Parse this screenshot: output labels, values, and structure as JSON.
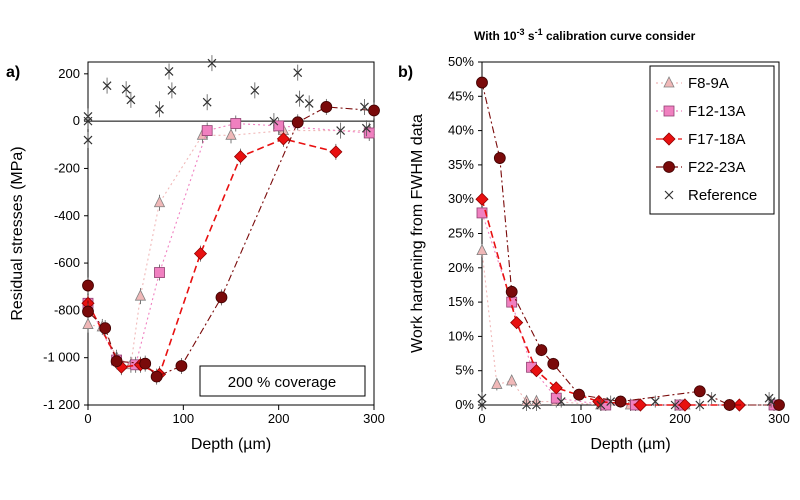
{
  "header": {
    "pre": "With 10",
    "exp1": "-3",
    "mid": " s",
    "exp2": "-1",
    "post": " calibration curve consider"
  },
  "legend_entries": [
    "F8-9A",
    "F12-13A",
    "F17-18A",
    "F22-23A",
    "Reference"
  ],
  "colors": {
    "F8-9A": "#f0b8b8",
    "F12-13A": "#f080c0",
    "F17-18A": "#e81010",
    "F22-23A": "#7a0a0a",
    "Reference": "#333333"
  },
  "chart_data": [
    {
      "type": "scatter",
      "panel_label": "a)",
      "xlabel": "Depth (µm)",
      "ylabel": "Residual stresses (MPa)",
      "xlim": [
        0,
        300
      ],
      "ylim": [
        -1200,
        250
      ],
      "x_ticks": [
        0,
        100,
        200,
        300
      ],
      "y_ticks": [
        200,
        0,
        -200,
        -400,
        -600,
        -800,
        -1000,
        -1200
      ],
      "y_tick_labels": [
        "200",
        "0",
        "-200",
        "-400",
        "-600",
        "-800",
        "-1 000",
        "-1 200"
      ],
      "annotation": "200 % coverage",
      "grid": false,
      "series": [
        {
          "name": "F8-9A",
          "marker": "triangle",
          "line": "dotted",
          "x": [
            0,
            15,
            30,
            45,
            55,
            75,
            120,
            150,
            205,
            295
          ],
          "y": [
            -860,
            -870,
            -1000,
            -1030,
            -740,
            -345,
            -60,
            -60,
            -40,
            -40
          ]
        },
        {
          "name": "F12-13A",
          "marker": "square",
          "line": "dotted",
          "x": [
            0,
            30,
            50,
            75,
            125,
            155,
            200,
            295
          ],
          "y": [
            -770,
            -1010,
            -1030,
            -640,
            -40,
            -10,
            -20,
            -50
          ]
        },
        {
          "name": "F17-18A",
          "marker": "diamond",
          "line": "dashed",
          "x": [
            0,
            35,
            55,
            75,
            118,
            160,
            205,
            260
          ],
          "y": [
            -770,
            -1040,
            -1030,
            -1070,
            -560,
            -150,
            -75,
            -130
          ]
        },
        {
          "name": "F22-23A",
          "marker": "circle",
          "line": "dashdot",
          "x": [
            0,
            0,
            18,
            30,
            60,
            72,
            98,
            140,
            220,
            250,
            300
          ],
          "y": [
            -695,
            -805,
            -875,
            -1015,
            -1025,
            -1080,
            -1035,
            -745,
            -5,
            60,
            45
          ]
        },
        {
          "name": "Reference",
          "marker": "x",
          "line": "none",
          "x": [
            0,
            0,
            0,
            20,
            40,
            45,
            75,
            85,
            88,
            125,
            130,
            175,
            195,
            220,
            222,
            232,
            265,
            290,
            292
          ],
          "y": [
            20,
            0,
            -80,
            150,
            135,
            90,
            50,
            210,
            130,
            80,
            245,
            130,
            0,
            205,
            95,
            75,
            -40,
            60,
            -30
          ]
        }
      ]
    },
    {
      "type": "scatter",
      "panel_label": "b)",
      "xlabel": "Depth (µm)",
      "ylabel": "Work hardening from FWHM data",
      "xlim": [
        0,
        300
      ],
      "ylim": [
        0,
        50
      ],
      "x_ticks": [
        0,
        100,
        200,
        300
      ],
      "y_ticks": [
        0,
        5,
        10,
        15,
        20,
        25,
        30,
        35,
        40,
        45,
        50
      ],
      "y_tick_labels": [
        "0%",
        "5%",
        "10%",
        "15%",
        "20%",
        "25%",
        "30%",
        "35%",
        "40%",
        "45%",
        "50%"
      ],
      "grid": false,
      "legend_position": "top-right",
      "series": [
        {
          "name": "F8-9A",
          "marker": "triangle",
          "line": "dotted",
          "x": [
            0,
            15,
            30,
            45,
            55,
            75,
            120,
            150,
            205,
            295
          ],
          "y": [
            22.5,
            3,
            3.5,
            0.5,
            0.5,
            0.5,
            0,
            0,
            0,
            0
          ]
        },
        {
          "name": "F12-13A",
          "marker": "square",
          "line": "dotted",
          "x": [
            0,
            30,
            50,
            75,
            125,
            155,
            200,
            295
          ],
          "y": [
            28,
            15,
            5.5,
            1,
            0,
            0,
            0,
            0
          ]
        },
        {
          "name": "F17-18A",
          "marker": "diamond",
          "line": "dashed",
          "x": [
            0,
            35,
            55,
            75,
            118,
            160,
            205,
            260
          ],
          "y": [
            30,
            12,
            5,
            2.5,
            0.5,
            0,
            0,
            0
          ]
        },
        {
          "name": "F22-23A",
          "marker": "circle",
          "line": "dashdot",
          "x": [
            0,
            18,
            30,
            60,
            72,
            98,
            140,
            220,
            250,
            300
          ],
          "y": [
            47,
            36,
            16.5,
            8,
            6,
            1.5,
            0.5,
            2,
            0,
            0
          ]
        },
        {
          "name": "Reference",
          "marker": "x",
          "line": "none",
          "x": [
            0,
            0,
            45,
            55,
            80,
            120,
            130,
            175,
            195,
            220,
            232,
            290,
            292
          ],
          "y": [
            1,
            0,
            0,
            0,
            0.5,
            0,
            0.5,
            0.5,
            0,
            0,
            1,
            1,
            0.5
          ]
        }
      ]
    }
  ]
}
